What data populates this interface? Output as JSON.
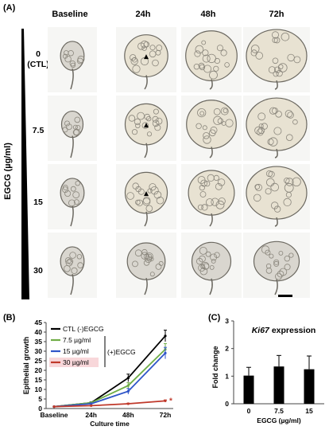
{
  "panel_labels": {
    "a": "(A)",
    "b": "(B)",
    "c": "(C)"
  },
  "grid": {
    "columns": [
      "Baseline",
      "24h",
      "48h",
      "72h"
    ],
    "rows": [
      {
        "dose": "0",
        "sub": "(CTL)"
      },
      {
        "dose": "7.5",
        "sub": ""
      },
      {
        "dose": "15",
        "sub": ""
      },
      {
        "dose": "30",
        "sub": ""
      }
    ],
    "y_title": "EGCG (µg/ml)"
  },
  "chart_data": [
    {
      "type": "line",
      "title": "",
      "xlabel": "Culture time",
      "ylabel": "Epithelial growth",
      "categories": [
        "Baseline",
        "24h",
        "48h",
        "72h"
      ],
      "ylim": [
        0,
        45
      ],
      "yticks": [
        0,
        5,
        10,
        15,
        20,
        25,
        30,
        35,
        40,
        45
      ],
      "legend_group_label": "(+)EGCG",
      "annotation": "*",
      "series": [
        {
          "name": "CTL (-)EGCG",
          "color": "#000000",
          "values": [
            1,
            3,
            16,
            38
          ],
          "errors": [
            0,
            0.5,
            2,
            3
          ]
        },
        {
          "name": "7.5 µg/ml",
          "color": "#70ad47",
          "values": [
            1,
            3,
            12,
            31
          ],
          "errors": [
            0,
            0.4,
            1.5,
            3
          ]
        },
        {
          "name": "15 µg/ml",
          "color": "#2f55c8",
          "values": [
            1,
            2.5,
            9,
            29
          ],
          "errors": [
            0,
            0.4,
            1.5,
            3
          ]
        },
        {
          "name": "30 µg/ml",
          "color": "#c0392b",
          "values": [
            1,
            1.5,
            2.5,
            4
          ],
          "errors": [
            0,
            0.2,
            0.3,
            0.5
          ]
        }
      ]
    },
    {
      "type": "bar",
      "title": "Ki67 expression",
      "xlabel": "EGCG (µg/ml)",
      "ylabel": "Fold change",
      "categories": [
        "0",
        "7.5",
        "15"
      ],
      "values": [
        1.02,
        1.35,
        1.25
      ],
      "errors": [
        0.3,
        0.4,
        0.48
      ],
      "ylim": [
        0,
        3
      ],
      "yticks": [
        0,
        1,
        2,
        3
      ],
      "color": "#000000"
    }
  ]
}
